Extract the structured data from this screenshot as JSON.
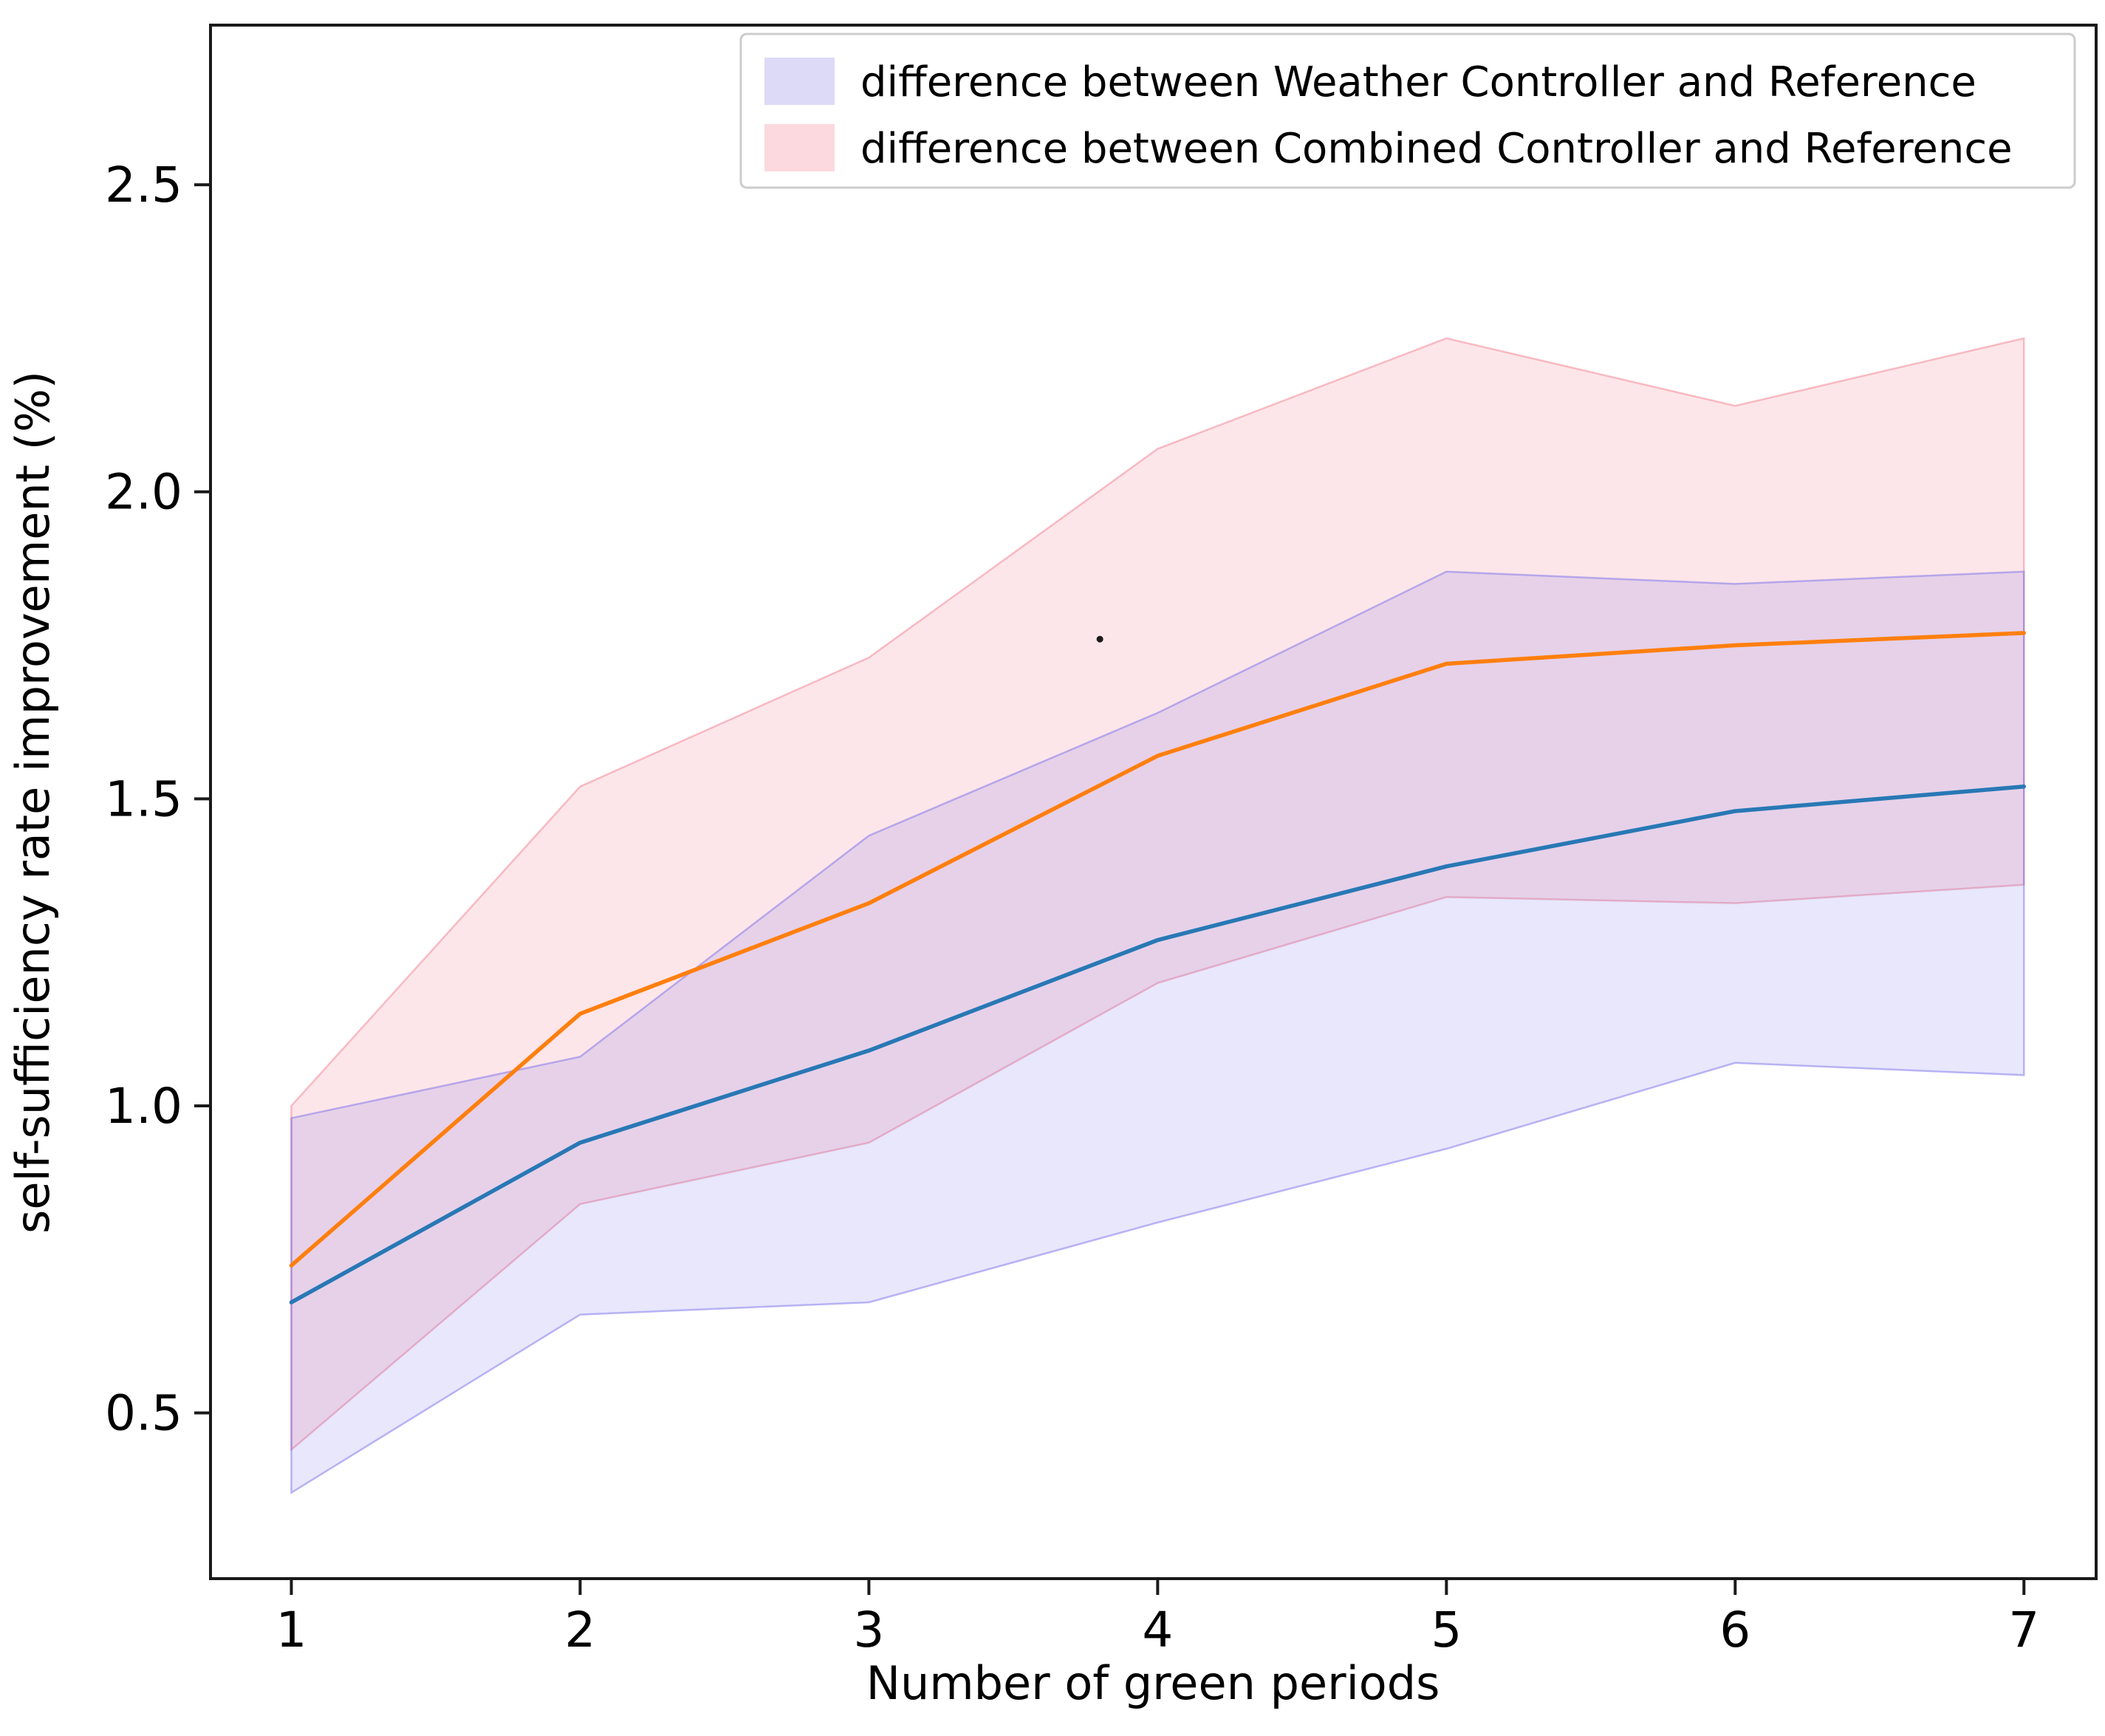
{
  "chart_data": {
    "type": "line",
    "title": "",
    "xlabel": "Number of green periods",
    "ylabel": "self-sufficiency rate improvement (%)",
    "x": [
      1,
      2,
      3,
      4,
      5,
      6,
      7
    ],
    "xticks": [
      1,
      2,
      3,
      4,
      5,
      6,
      7
    ],
    "yticks": [
      0.5,
      1.0,
      1.5,
      2.0,
      2.5
    ],
    "xlim": [
      0.72,
      7.25
    ],
    "ylim": [
      0.23,
      2.76
    ],
    "grid": false,
    "legend_position": "upper right",
    "series": [
      {
        "name": "Weather Controller minus Reference",
        "color": "#2878b5",
        "values": [
          0.68,
          0.94,
          1.09,
          1.27,
          1.39,
          1.48,
          1.52
        ],
        "band": {
          "lower": [
            0.37,
            0.66,
            0.68,
            0.81,
            0.93,
            1.07,
            1.05
          ],
          "upper": [
            0.98,
            1.08,
            1.44,
            1.64,
            1.87,
            1.85,
            1.87
          ],
          "fill": "rgba(100,95,235,0.15)",
          "edge": "rgba(110,100,235,0.45)"
        }
      },
      {
        "name": "Combined Controller minus Reference",
        "color": "#ff7f0e",
        "values": [
          0.74,
          1.15,
          1.33,
          1.57,
          1.72,
          1.75,
          1.77
        ],
        "band": {
          "lower": [
            0.44,
            0.84,
            0.94,
            1.2,
            1.34,
            1.33,
            1.36
          ],
          "upper": [
            1.0,
            1.52,
            1.73,
            2.07,
            2.25,
            2.14,
            2.25
          ],
          "fill": "rgba(240,85,105,0.15)",
          "edge": "rgba(240,100,120,0.40)"
        }
      }
    ],
    "legend": [
      {
        "label": "difference between Weather Controller and Reference",
        "swatch": "#dcdaf6"
      },
      {
        "label": "difference between Combined Controller and Reference",
        "swatch": "#fbd9de"
      }
    ],
    "annotation_dot": {
      "x": 3.8,
      "y": 1.76
    },
    "axis_color": "#1a1a1a"
  }
}
